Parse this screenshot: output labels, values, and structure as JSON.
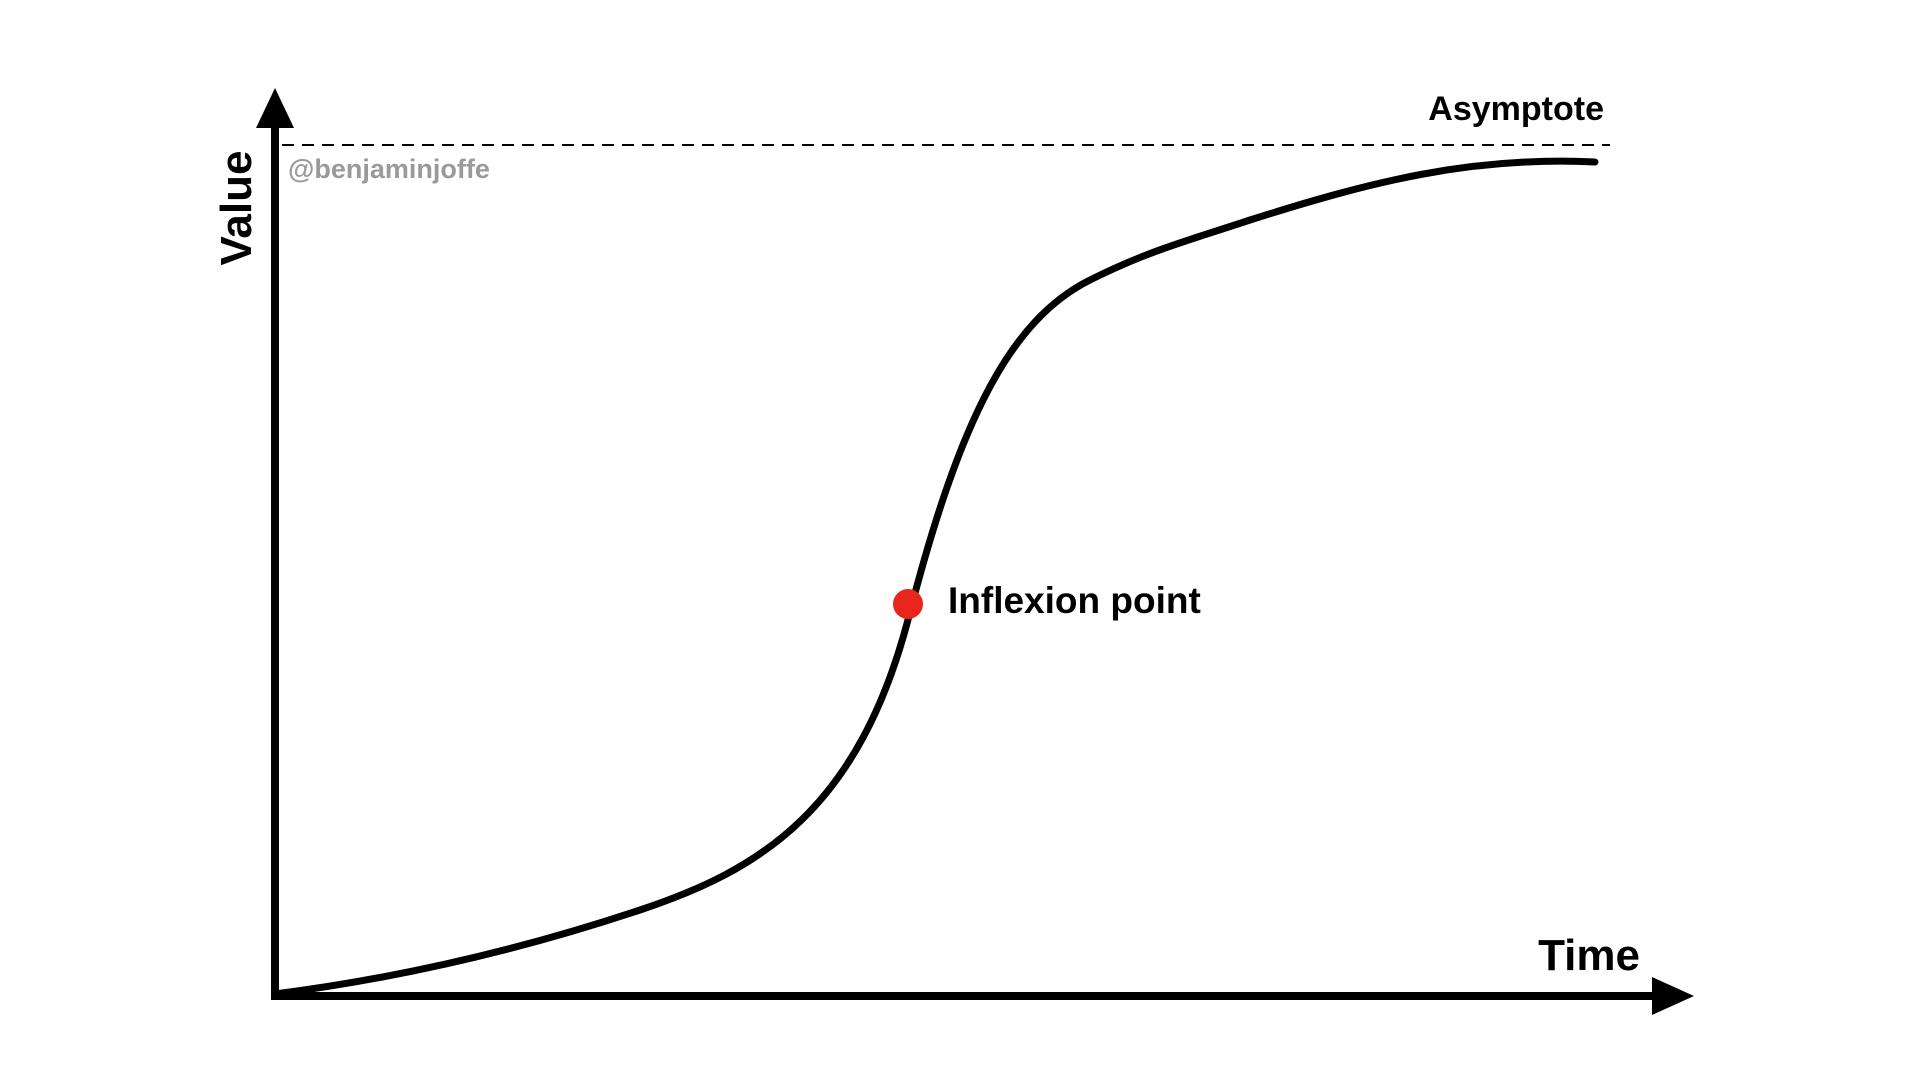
{
  "labels": {
    "x_axis": "Time",
    "y_axis": "Value",
    "asymptote": "Asymptote",
    "inflexion": "Inflexion point",
    "credit": "@benjaminjoffe"
  },
  "colors": {
    "background": "#ffffff",
    "stroke": "#000000",
    "inflexion_point": "#e8261b",
    "credit": "#9a9a9a"
  }
}
